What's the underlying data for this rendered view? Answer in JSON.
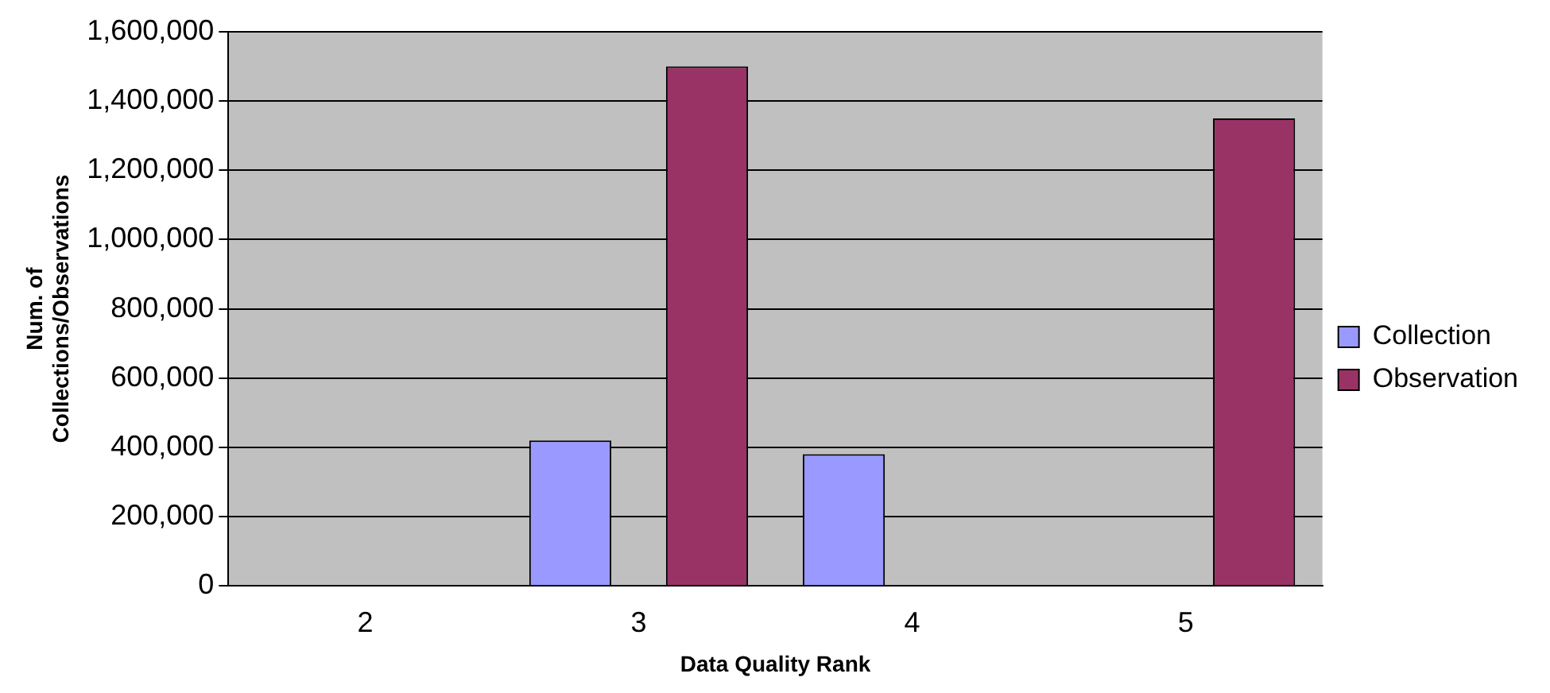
{
  "chart_data": {
    "type": "bar",
    "xlabel": "Data Quality Rank",
    "ylabel": "Num. of\nCollections/Observations",
    "categories": [
      "2",
      "3",
      "4",
      "5"
    ],
    "series": [
      {
        "name": "Collection",
        "color": "#9999ff",
        "values": [
          null,
          420000,
          380000,
          null
        ]
      },
      {
        "name": "Observation",
        "color": "#993366",
        "values": [
          null,
          1500000,
          null,
          1350000
        ]
      }
    ],
    "ylim": [
      0,
      1600000
    ],
    "yticks": [
      0,
      {
        "value": 200000,
        "label": "200,000"
      },
      {
        "value": 400000,
        "label": "400,000"
      },
      {
        "value": 600000,
        "label": "600,000"
      },
      {
        "value": 800000,
        "label": "800,000"
      },
      {
        "value": 1000000,
        "label": "1,000,000"
      },
      {
        "value": 1200000,
        "label": "1,200,000"
      },
      {
        "value": 1400000,
        "label": "1,400,000"
      },
      {
        "value": 1600000,
        "label": "1,600,000"
      }
    ],
    "grid": "y",
    "legend": "right"
  }
}
